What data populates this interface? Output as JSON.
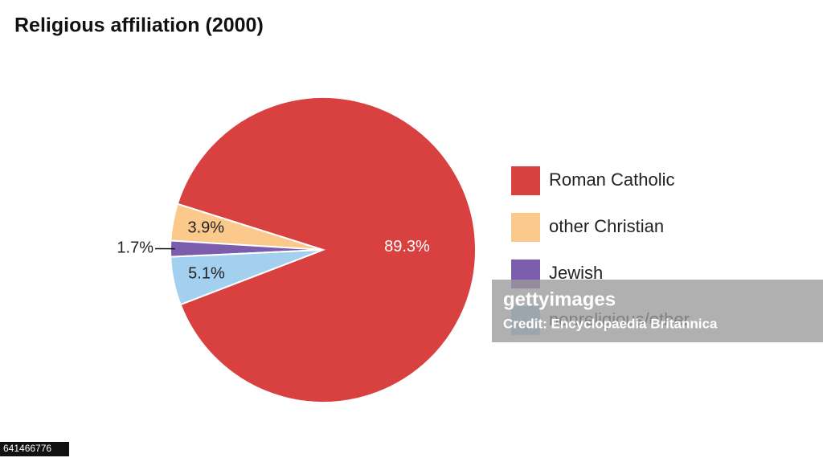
{
  "chart_data": {
    "type": "pie",
    "title": "Religious affiliation (2000)",
    "categories": [
      "Roman Catholic",
      "other Christian",
      "Jewish",
      "nonreligious/other"
    ],
    "values": [
      89.3,
      3.9,
      1.7,
      5.1
    ],
    "value_labels": [
      "89.3%",
      "3.9%",
      "1.7%",
      "5.1%"
    ],
    "colors": [
      "#d94040",
      "#fbc98c",
      "#7c5cad",
      "#a3d0ef"
    ],
    "legend": "right"
  },
  "watermark": {
    "brand": "gettyimages",
    "credit": "Credit: Encyclopaedia Britannica",
    "id": "641466776"
  }
}
